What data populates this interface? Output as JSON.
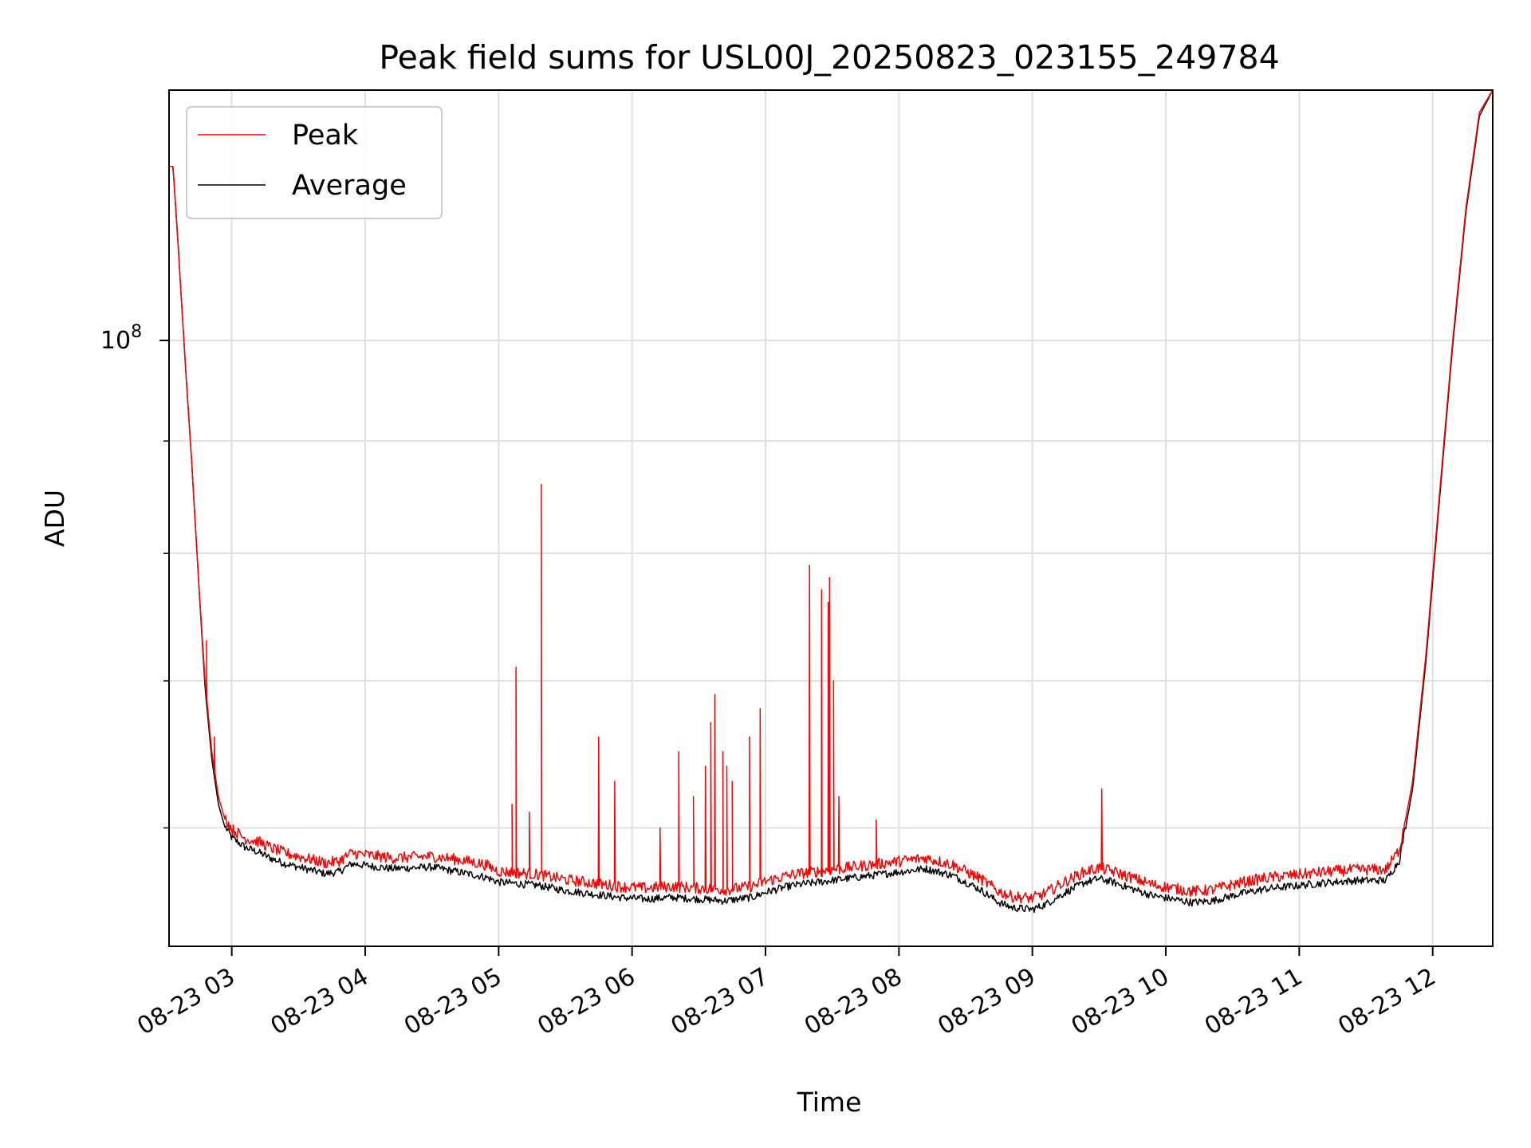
{
  "chart_data": {
    "type": "line",
    "title": "Peak field sums for USL00J_20250823_023155_249784",
    "xlabel": "Time",
    "ylabel": "ADU",
    "x_unit": "time (hours of 2025-08-23, decimal)",
    "y_scale": "log",
    "xlim": [
      2.53,
      12.45
    ],
    "ylim": [
      53000000,
      130000000
    ],
    "x_ticks": [
      3,
      4,
      5,
      6,
      7,
      8,
      9,
      10,
      11,
      12
    ],
    "x_tick_labels": [
      "08-23 03",
      "08-23 04",
      "08-23 05",
      "08-23 06",
      "08-23 07",
      "08-23 08",
      "08-23 09",
      "08-23 10",
      "08-23 11",
      "08-23 12"
    ],
    "y_major_ticks": [
      100000000
    ],
    "y_tick_label": {
      "base": "10",
      "exp": "8"
    },
    "y_minor_ticks": [
      60000000,
      70000000,
      80000000,
      90000000
    ],
    "grid": true,
    "legend_position": "upper left",
    "colors": {
      "peak": "#ff0000",
      "average": "#000000",
      "grid": "#e0e0e0"
    },
    "series": [
      {
        "name": "Peak",
        "color": "#ff0000",
        "points": [
          [
            2.53,
            120000000
          ],
          [
            2.56,
            120000000
          ],
          [
            2.6,
            110000000
          ],
          [
            2.65,
            98000000
          ],
          [
            2.7,
            88000000
          ],
          [
            2.75,
            78000000
          ],
          [
            2.8,
            70000000
          ],
          [
            2.85,
            65000000
          ],
          [
            2.9,
            62000000
          ],
          [
            2.95,
            60500000
          ],
          [
            3.0,
            59800000
          ],
          [
            3.1,
            59200000
          ],
          [
            3.2,
            59000000
          ],
          [
            3.3,
            58600000
          ],
          [
            3.4,
            58300000
          ],
          [
            3.5,
            58100000
          ],
          [
            3.6,
            57900000
          ],
          [
            3.7,
            57700000
          ],
          [
            3.8,
            57800000
          ],
          [
            3.9,
            58300000
          ],
          [
            4.0,
            58200000
          ],
          [
            4.2,
            58000000
          ],
          [
            4.5,
            58100000
          ],
          [
            4.7,
            57900000
          ],
          [
            4.9,
            57600000
          ],
          [
            5.0,
            57200000
          ],
          [
            5.15,
            57100000
          ],
          [
            5.3,
            57000000
          ],
          [
            5.5,
            56700000
          ],
          [
            5.7,
            56500000
          ],
          [
            5.9,
            56300000
          ],
          [
            6.1,
            56200000
          ],
          [
            6.3,
            56300000
          ],
          [
            6.5,
            56200000
          ],
          [
            6.7,
            56100000
          ],
          [
            6.9,
            56300000
          ],
          [
            7.0,
            56600000
          ],
          [
            7.2,
            57000000
          ],
          [
            7.4,
            57200000
          ],
          [
            7.6,
            57400000
          ],
          [
            7.8,
            57600000
          ],
          [
            8.0,
            57800000
          ],
          [
            8.2,
            58000000
          ],
          [
            8.4,
            57600000
          ],
          [
            8.6,
            56800000
          ],
          [
            8.75,
            56000000
          ],
          [
            8.85,
            55700000
          ],
          [
            9.0,
            55600000
          ],
          [
            9.1,
            55900000
          ],
          [
            9.25,
            56600000
          ],
          [
            9.4,
            57200000
          ],
          [
            9.5,
            57400000
          ],
          [
            9.6,
            57200000
          ],
          [
            9.75,
            56800000
          ],
          [
            9.9,
            56400000
          ],
          [
            10.05,
            56200000
          ],
          [
            10.2,
            56000000
          ],
          [
            10.35,
            56100000
          ],
          [
            10.55,
            56500000
          ],
          [
            10.75,
            56800000
          ],
          [
            11.0,
            57000000
          ],
          [
            11.25,
            57200000
          ],
          [
            11.45,
            57300000
          ],
          [
            11.65,
            57300000
          ],
          [
            11.75,
            58500000
          ],
          [
            11.85,
            63000000
          ],
          [
            11.95,
            72000000
          ],
          [
            12.05,
            85000000
          ],
          [
            12.15,
            100000000
          ],
          [
            12.25,
            115000000
          ],
          [
            12.35,
            127000000
          ],
          [
            12.45,
            130000000
          ]
        ],
        "spikes": [
          [
            2.81,
            73000000
          ],
          [
            2.87,
            66000000
          ],
          [
            5.1,
            61500000
          ],
          [
            5.13,
            71000000
          ],
          [
            5.23,
            61000000
          ],
          [
            5.32,
            86000000
          ],
          [
            5.75,
            66000000
          ],
          [
            5.87,
            63000000
          ],
          [
            6.21,
            60000000
          ],
          [
            6.35,
            65000000
          ],
          [
            6.46,
            62000000
          ],
          [
            6.55,
            64000000
          ],
          [
            6.59,
            67000000
          ],
          [
            6.62,
            69000000
          ],
          [
            6.68,
            65000000
          ],
          [
            6.71,
            64000000
          ],
          [
            6.75,
            63000000
          ],
          [
            6.88,
            66000000
          ],
          [
            6.96,
            68000000
          ],
          [
            7.33,
            79000000
          ],
          [
            7.42,
            77000000
          ],
          [
            7.47,
            76000000
          ],
          [
            7.48,
            78000000
          ],
          [
            7.51,
            70000000
          ],
          [
            7.55,
            62000000
          ],
          [
            7.83,
            60500000
          ],
          [
            9.52,
            62500000
          ]
        ]
      },
      {
        "name": "Average",
        "color": "#000000",
        "points": [
          [
            2.53,
            120000000
          ],
          [
            2.56,
            120000000
          ],
          [
            2.6,
            110000000
          ],
          [
            2.65,
            98000000
          ],
          [
            2.7,
            88000000
          ],
          [
            2.75,
            78000000
          ],
          [
            2.8,
            69500000
          ],
          [
            2.85,
            64500000
          ],
          [
            2.9,
            61500000
          ],
          [
            2.95,
            60000000
          ],
          [
            3.0,
            59300000
          ],
          [
            3.1,
            58700000
          ],
          [
            3.2,
            58400000
          ],
          [
            3.3,
            58000000
          ],
          [
            3.4,
            57700000
          ],
          [
            3.5,
            57500000
          ],
          [
            3.6,
            57300000
          ],
          [
            3.7,
            57100000
          ],
          [
            3.8,
            57200000
          ],
          [
            3.9,
            57700000
          ],
          [
            4.0,
            57600000
          ],
          [
            4.2,
            57400000
          ],
          [
            4.5,
            57500000
          ],
          [
            4.7,
            57200000
          ],
          [
            4.9,
            56900000
          ],
          [
            5.0,
            56600000
          ],
          [
            5.15,
            56500000
          ],
          [
            5.3,
            56400000
          ],
          [
            5.5,
            56100000
          ],
          [
            5.7,
            55900000
          ],
          [
            5.9,
            55700000
          ],
          [
            6.1,
            55600000
          ],
          [
            6.3,
            55700000
          ],
          [
            6.5,
            55600000
          ],
          [
            6.7,
            55500000
          ],
          [
            6.9,
            55700000
          ],
          [
            7.0,
            56000000
          ],
          [
            7.2,
            56400000
          ],
          [
            7.4,
            56600000
          ],
          [
            7.6,
            56800000
          ],
          [
            7.8,
            57000000
          ],
          [
            8.0,
            57200000
          ],
          [
            8.2,
            57400000
          ],
          [
            8.4,
            57000000
          ],
          [
            8.6,
            56200000
          ],
          [
            8.75,
            55400000
          ],
          [
            8.85,
            55100000
          ],
          [
            9.0,
            55000000
          ],
          [
            9.1,
            55300000
          ],
          [
            9.25,
            56000000
          ],
          [
            9.4,
            56600000
          ],
          [
            9.5,
            56800000
          ],
          [
            9.6,
            56600000
          ],
          [
            9.75,
            56200000
          ],
          [
            9.9,
            55800000
          ],
          [
            10.05,
            55600000
          ],
          [
            10.2,
            55400000
          ],
          [
            10.35,
            55500000
          ],
          [
            10.55,
            55900000
          ],
          [
            10.75,
            56200000
          ],
          [
            11.0,
            56400000
          ],
          [
            11.25,
            56600000
          ],
          [
            11.45,
            56700000
          ],
          [
            11.65,
            56700000
          ],
          [
            11.75,
            57900000
          ],
          [
            11.85,
            62500000
          ],
          [
            11.95,
            71500000
          ],
          [
            12.05,
            84500000
          ],
          [
            12.15,
            99500000
          ],
          [
            12.25,
            114500000
          ],
          [
            12.35,
            126500000
          ],
          [
            12.45,
            130000000
          ]
        ]
      }
    ]
  }
}
